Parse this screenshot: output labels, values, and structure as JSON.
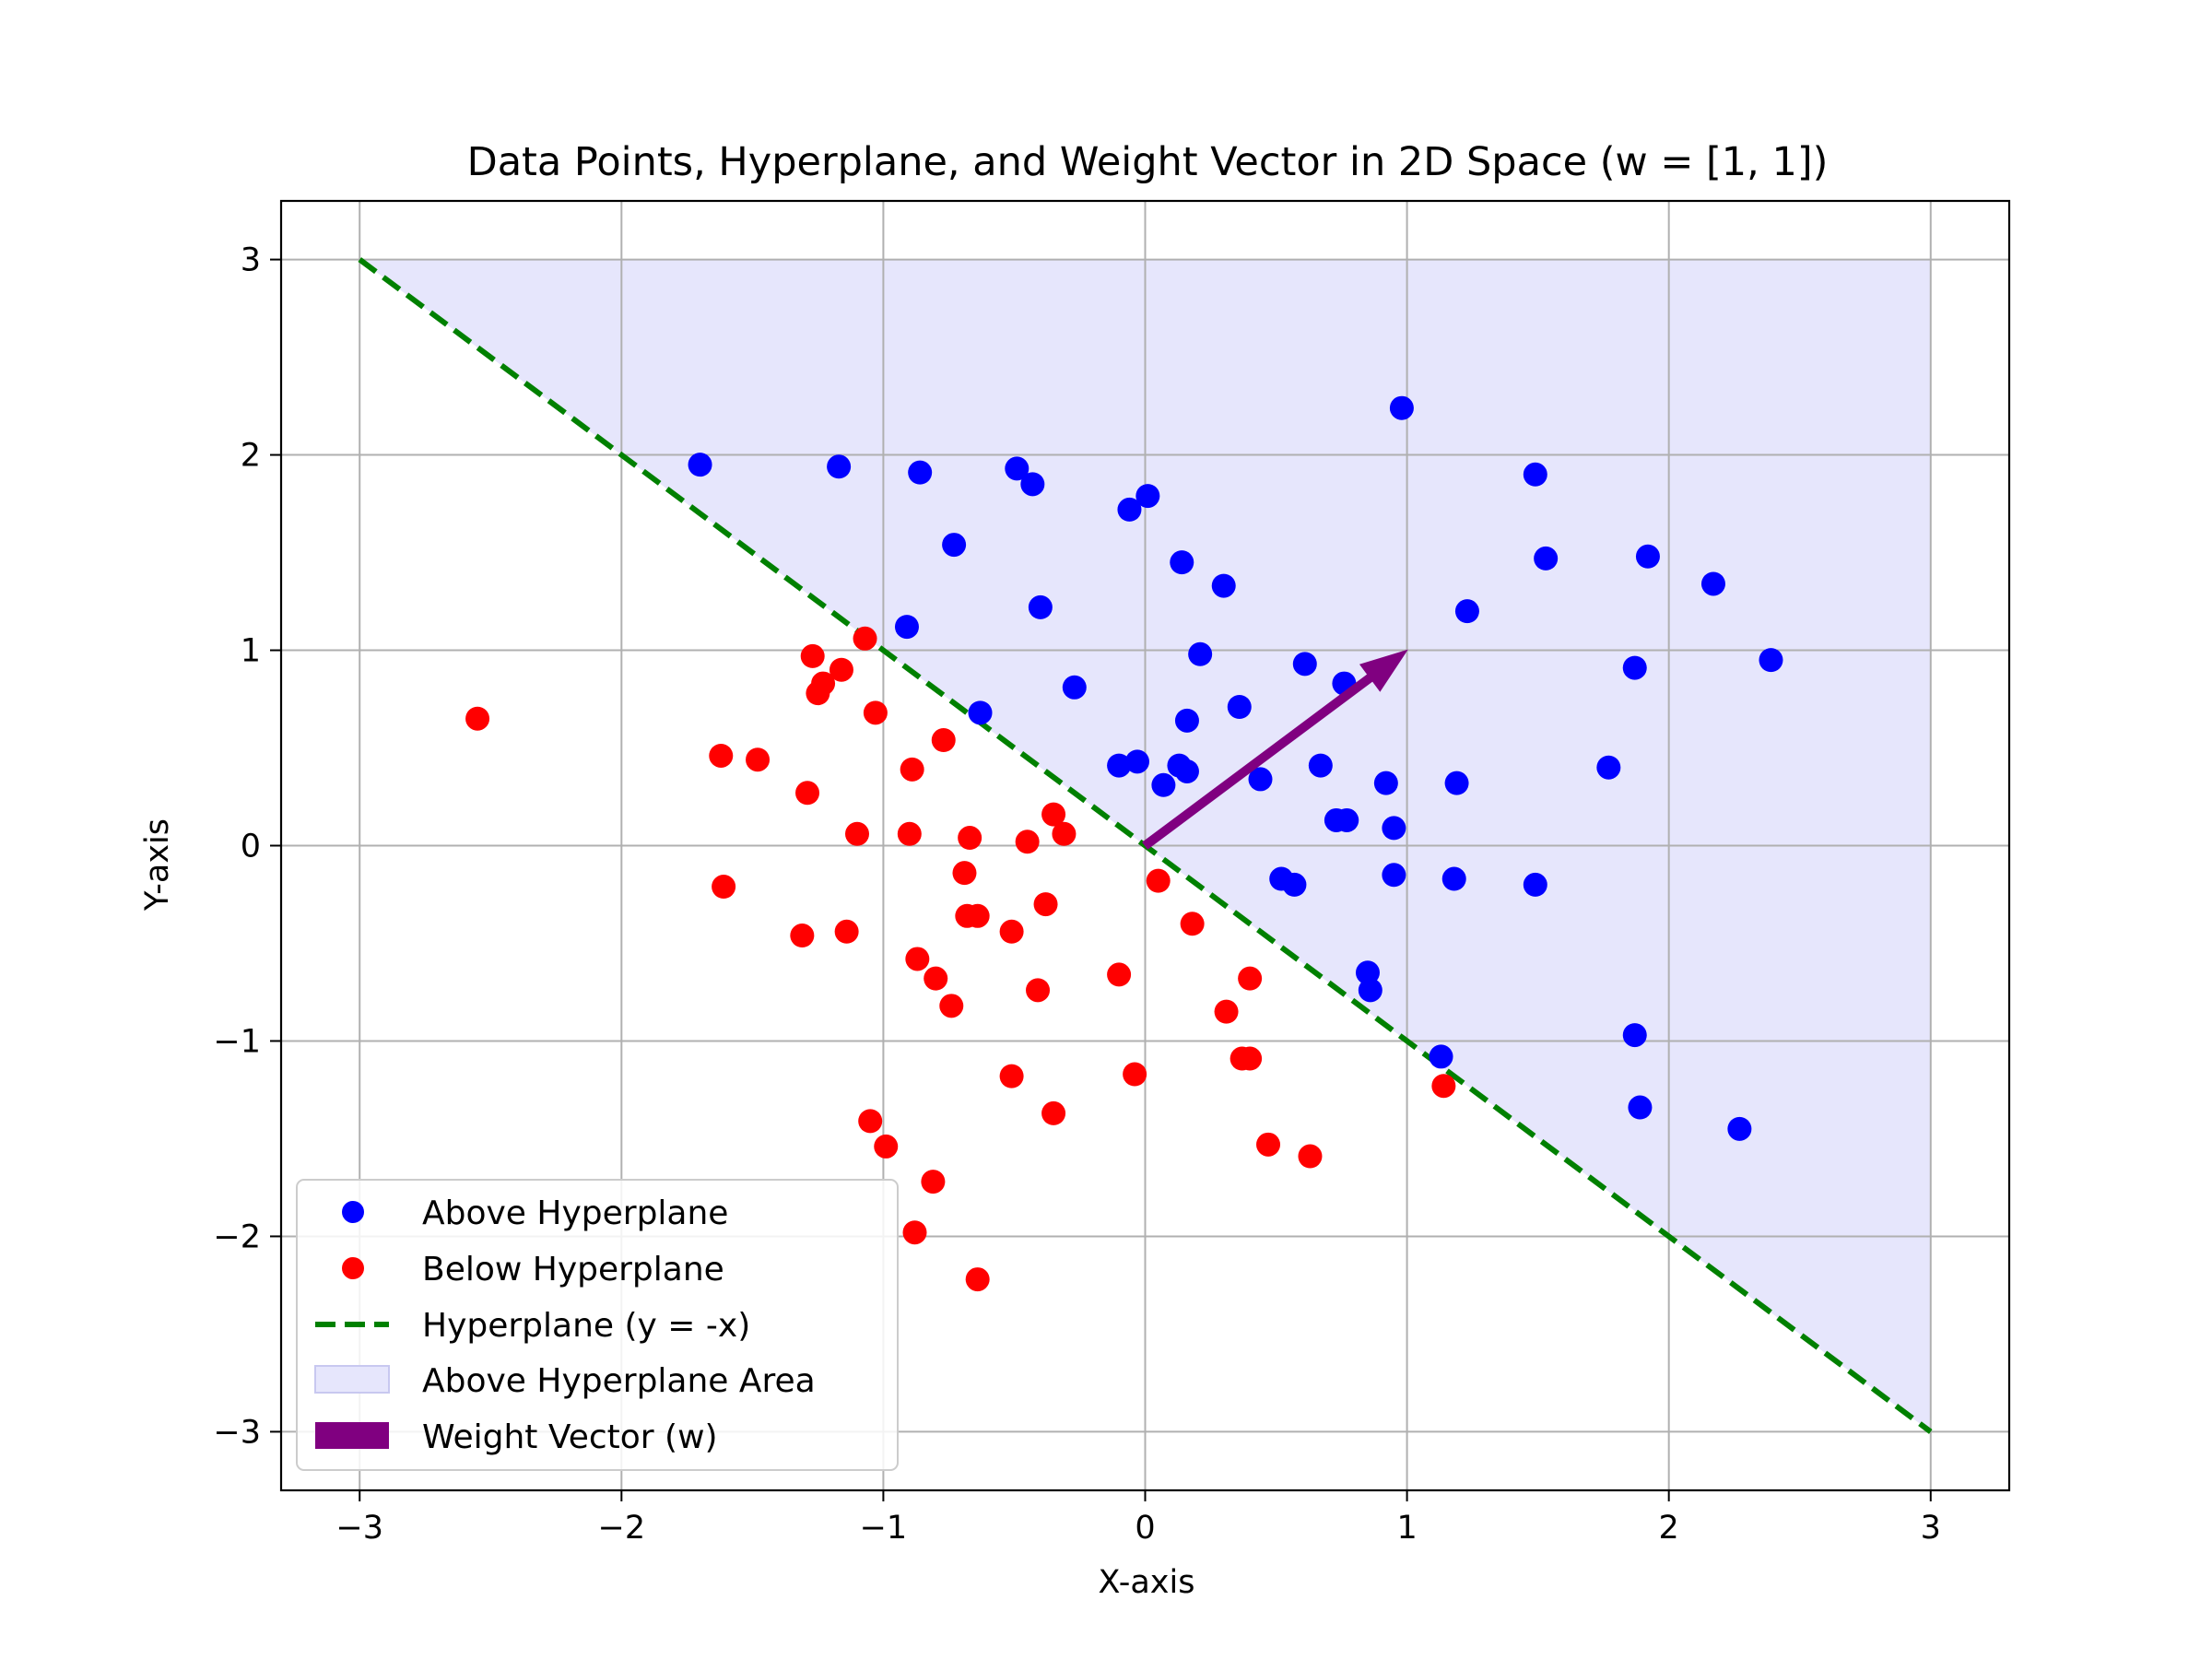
{
  "chart_data": {
    "type": "scatter",
    "title": "Data Points, Hyperplane, and Weight Vector in 2D Space (w = [1, 1])",
    "xlabel": "X-axis",
    "ylabel": "Y-axis",
    "xlim": [
      -3.3,
      3.3
    ],
    "ylim": [
      -3.3,
      3.3
    ],
    "xticks": [
      -3,
      -2,
      -1,
      0,
      1,
      2,
      3
    ],
    "yticks": [
      -3,
      -2,
      -1,
      0,
      1,
      2,
      3
    ],
    "xtick_labels": [
      "−3",
      "−2",
      "−1",
      "0",
      "1",
      "2",
      "3"
    ],
    "ytick_labels": [
      "−3",
      "−2",
      "−1",
      "0",
      "1",
      "2",
      "3"
    ],
    "grid": true,
    "legend_position": "lower-left",
    "colors": {
      "above": "#0000ff",
      "below": "#ff0000",
      "hyperplane": "#008000",
      "area": "#e6e6fc",
      "vector": "#800080"
    },
    "series": [
      {
        "name": "Above Hyperplane",
        "kind": "scatter",
        "points": [
          [
            -1.7,
            1.95
          ],
          [
            -1.17,
            1.94
          ],
          [
            -0.86,
            1.91
          ],
          [
            -0.49,
            1.93
          ],
          [
            -0.43,
            1.85
          ],
          [
            -0.73,
            1.54
          ],
          [
            -0.06,
            1.72
          ],
          [
            0.01,
            1.79
          ],
          [
            0.98,
            2.24
          ],
          [
            1.49,
            1.9
          ],
          [
            -0.4,
            1.22
          ],
          [
            -0.91,
            1.12
          ],
          [
            0.14,
            1.45
          ],
          [
            0.3,
            1.33
          ],
          [
            0.21,
            0.98
          ],
          [
            -0.27,
            0.81
          ],
          [
            -0.63,
            0.68
          ],
          [
            0.16,
            0.64
          ],
          [
            0.36,
            0.71
          ],
          [
            0.61,
            0.93
          ],
          [
            0.76,
            0.83
          ],
          [
            1.23,
            1.2
          ],
          [
            1.53,
            1.47
          ],
          [
            1.92,
            1.48
          ],
          [
            2.17,
            1.34
          ],
          [
            2.39,
            0.95
          ],
          [
            1.87,
            0.91
          ],
          [
            -0.1,
            0.41
          ],
          [
            -0.03,
            0.43
          ],
          [
            0.07,
            0.31
          ],
          [
            0.13,
            0.41
          ],
          [
            0.16,
            0.38
          ],
          [
            0.44,
            0.34
          ],
          [
            0.67,
            0.41
          ],
          [
            0.92,
            0.32
          ],
          [
            1.19,
            0.32
          ],
          [
            1.77,
            0.4
          ],
          [
            0.73,
            0.13
          ],
          [
            0.77,
            0.13
          ],
          [
            0.95,
            0.09
          ],
          [
            0.52,
            -0.17
          ],
          [
            0.57,
            -0.2
          ],
          [
            0.95,
            -0.15
          ],
          [
            1.18,
            -0.17
          ],
          [
            1.49,
            -0.2
          ],
          [
            0.85,
            -0.65
          ],
          [
            0.86,
            -0.74
          ],
          [
            1.13,
            -1.08
          ],
          [
            1.87,
            -0.97
          ],
          [
            1.89,
            -1.34
          ],
          [
            2.27,
            -1.45
          ]
        ]
      },
      {
        "name": "Below Hyperplane",
        "kind": "scatter",
        "points": [
          [
            -2.55,
            0.65
          ],
          [
            -1.27,
            0.97
          ],
          [
            -1.07,
            1.06
          ],
          [
            -1.23,
            0.83
          ],
          [
            -1.16,
            0.9
          ],
          [
            -1.25,
            0.78
          ],
          [
            -1.03,
            0.68
          ],
          [
            -0.77,
            0.54
          ],
          [
            -1.62,
            0.46
          ],
          [
            -1.48,
            0.44
          ],
          [
            -0.89,
            0.39
          ],
          [
            -1.29,
            0.27
          ],
          [
            -1.1,
            0.06
          ],
          [
            -0.9,
            0.06
          ],
          [
            -0.67,
            0.04
          ],
          [
            -0.35,
            0.16
          ],
          [
            -0.31,
            0.06
          ],
          [
            -0.45,
            0.02
          ],
          [
            -1.61,
            -0.21
          ],
          [
            -0.69,
            -0.14
          ],
          [
            -0.38,
            -0.3
          ],
          [
            0.05,
            -0.18
          ],
          [
            -0.68,
            -0.36
          ],
          [
            -0.64,
            -0.36
          ],
          [
            -1.31,
            -0.46
          ],
          [
            -1.14,
            -0.44
          ],
          [
            -0.51,
            -0.44
          ],
          [
            0.18,
            -0.4
          ],
          [
            -0.87,
            -0.58
          ],
          [
            -0.8,
            -0.68
          ],
          [
            -0.41,
            -0.74
          ],
          [
            -0.1,
            -0.66
          ],
          [
            0.4,
            -0.68
          ],
          [
            -0.74,
            -0.82
          ],
          [
            0.31,
            -0.85
          ],
          [
            0.37,
            -1.09
          ],
          [
            0.4,
            -1.09
          ],
          [
            -0.51,
            -1.18
          ],
          [
            -0.04,
            -1.17
          ],
          [
            1.14,
            -1.23
          ],
          [
            -1.05,
            -1.41
          ],
          [
            -0.99,
            -1.54
          ],
          [
            -0.35,
            -1.37
          ],
          [
            0.47,
            -1.53
          ],
          [
            0.63,
            -1.59
          ],
          [
            -0.81,
            -1.72
          ],
          [
            -0.88,
            -1.98
          ],
          [
            -0.64,
            -2.22
          ]
        ]
      },
      {
        "name": "Hyperplane (y = -x)",
        "kind": "line",
        "x": [
          -3,
          3
        ],
        "y": [
          3,
          -3
        ]
      },
      {
        "name": "Above Hyperplane Area",
        "kind": "area",
        "polygon": [
          [
            -3,
            3
          ],
          [
            3,
            3
          ],
          [
            3,
            -3
          ]
        ]
      },
      {
        "name": "Weight Vector (w)",
        "kind": "vector",
        "origin": [
          0,
          0
        ],
        "vector": [
          1,
          1
        ]
      }
    ]
  }
}
